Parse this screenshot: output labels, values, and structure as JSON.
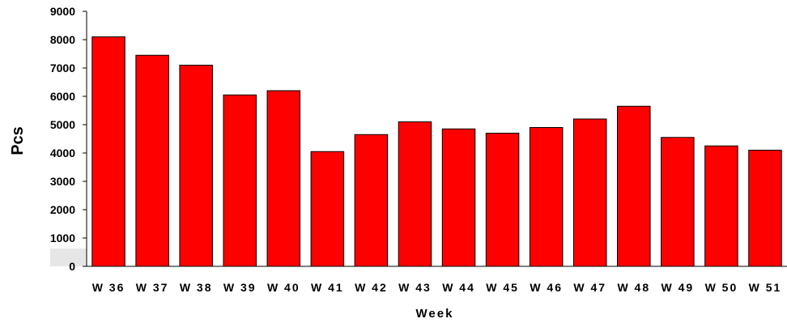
{
  "chart_data": {
    "type": "bar",
    "categories": [
      "W 36",
      "W 37",
      "W 38",
      "W 39",
      "W 40",
      "W 41",
      "W 42",
      "W 43",
      "W 44",
      "W 45",
      "W 46",
      "W 47",
      "W 48",
      "W 49",
      "W 50",
      "W 51"
    ],
    "values": [
      8100,
      7450,
      7100,
      6050,
      6200,
      4050,
      4650,
      5100,
      4850,
      4700,
      4900,
      5200,
      5650,
      4550,
      4250,
      4100
    ],
    "title": "",
    "xlabel": "Week",
    "ylabel": "Pcs",
    "ylim": [
      0,
      9000
    ],
    "yticks": [
      0,
      1000,
      2000,
      3000,
      4000,
      5000,
      6000,
      7000,
      8000,
      9000
    ],
    "grid": false,
    "legend": "none",
    "bar_color": "#ff0000",
    "bar_edge_color": "#000000",
    "plot_floor_color": "#e6e6e6"
  }
}
